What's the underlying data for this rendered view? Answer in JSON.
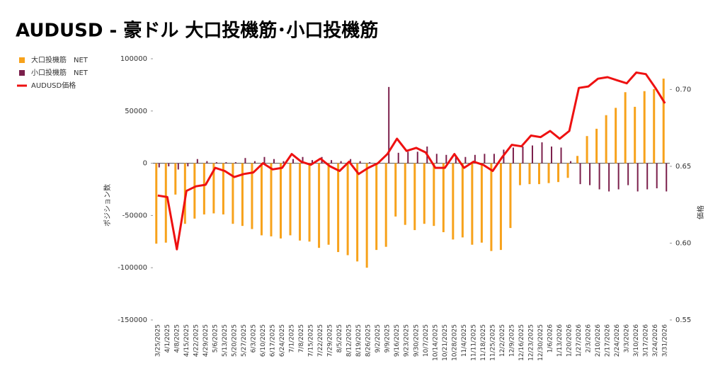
{
  "chart_data": {
    "type": "bar_line",
    "title": "AUDUSD - 豪ドル 大口投機筋･小口投機筋",
    "y_label": "ポジション数",
    "y2_label": "価格",
    "categories": [
      "3/25/2025",
      "4/1/2025",
      "4/8/2025",
      "4/15/2025",
      "4/22/2025",
      "4/29/2025",
      "5/6/2025",
      "5/13/2025",
      "5/20/2025",
      "5/27/2025",
      "6/3/2025",
      "6/10/2025",
      "6/17/2025",
      "6/24/2025",
      "7/1/2025",
      "7/8/2025",
      "7/15/2025",
      "7/22/2025",
      "7/29/2025",
      "8/5/2025",
      "8/12/2025",
      "8/19/2025",
      "8/26/2025",
      "9/2/2025",
      "9/9/2025",
      "9/16/2025",
      "9/23/2025",
      "9/30/2025",
      "10/7/2025",
      "10/14/2025",
      "10/21/2025",
      "10/28/2025",
      "11/4/2025",
      "11/11/2025",
      "11/18/2025",
      "11/25/2025",
      "12/2/2025",
      "12/9/2025",
      "12/16/2025",
      "12/23/2025",
      "12/30/2025",
      "1/6/2026",
      "1/13/2026",
      "1/20/2026",
      "1/27/2026",
      "2/3/2026",
      "2/10/2026",
      "2/17/2026",
      "2/24/2026",
      "3/3/2026",
      "3/10/2026",
      "3/17/2026",
      "3/24/2026",
      "3/31/2026"
    ],
    "series": [
      {
        "name": "大口投機筋　NET",
        "color": "#f7a21b",
        "kind": "bar",
        "values": [
          -77000,
          -76000,
          -30000,
          -58000,
          -53000,
          -49000,
          -48000,
          -49000,
          -58000,
          -60000,
          -63000,
          -69000,
          -70000,
          -72000,
          -69000,
          -74000,
          -75000,
          -81000,
          -78000,
          -85000,
          -88000,
          -94000,
          -100000,
          -83000,
          -80000,
          -51000,
          -59000,
          -64000,
          -58000,
          -60000,
          -66000,
          -73000,
          -71000,
          -78000,
          -76000,
          -84000,
          -83000,
          -62000,
          -21000,
          -20000,
          -20000,
          -19000,
          -18000,
          -14000,
          7000,
          26000,
          33000,
          46000,
          53000,
          68000,
          54000,
          69000,
          71000,
          81000
        ]
      },
      {
        "name": "小口投機筋　NET",
        "color": "#7b1f4b",
        "kind": "bar",
        "values": [
          -4000,
          -3000,
          -6000,
          -3000,
          4000,
          2000,
          1000,
          1000,
          1000,
          5000,
          2000,
          6000,
          4000,
          2000,
          4000,
          6000,
          3000,
          6000,
          3000,
          2000,
          4000,
          2000,
          1000,
          1000,
          73000,
          10000,
          11000,
          11000,
          16000,
          9000,
          8000,
          7000,
          6000,
          8000,
          9000,
          9000,
          13000,
          15000,
          16000,
          17000,
          20000,
          16000,
          15000,
          2000,
          -20000,
          -21000,
          -25000,
          -27000,
          -25000,
          -21000,
          -27000,
          -25000,
          -24000,
          -27000
        ]
      },
      {
        "name": "AUDUSD価格",
        "color": "#ee1111",
        "kind": "line",
        "axis": "y2",
        "values": [
          0.631,
          0.63,
          0.596,
          0.634,
          0.637,
          0.638,
          0.649,
          0.647,
          0.643,
          0.645,
          0.646,
          0.652,
          0.648,
          0.649,
          0.658,
          0.653,
          0.651,
          0.655,
          0.65,
          0.647,
          0.653,
          0.645,
          0.649,
          0.652,
          0.658,
          0.668,
          0.66,
          0.662,
          0.659,
          0.649,
          0.649,
          0.658,
          0.649,
          0.653,
          0.651,
          0.647,
          0.656,
          0.664,
          0.663,
          0.67,
          0.669,
          0.673,
          0.668,
          0.673,
          0.701,
          0.702,
          0.707,
          0.708,
          0.706,
          0.704,
          0.711,
          0.71,
          0.701,
          0.691
        ]
      }
    ],
    "ylim": [
      -150000,
      100000
    ],
    "yticks": [
      -150000,
      -100000,
      -50000,
      0,
      50000,
      100000
    ],
    "y2lim": [
      0.55,
      0.72
    ],
    "y2ticks": [
      0.55,
      {
        "value": 0.6,
        "label": "0.60"
      },
      0.65,
      {
        "value": 0.7,
        "label": "0.70"
      }
    ],
    "legend": "top-left"
  }
}
